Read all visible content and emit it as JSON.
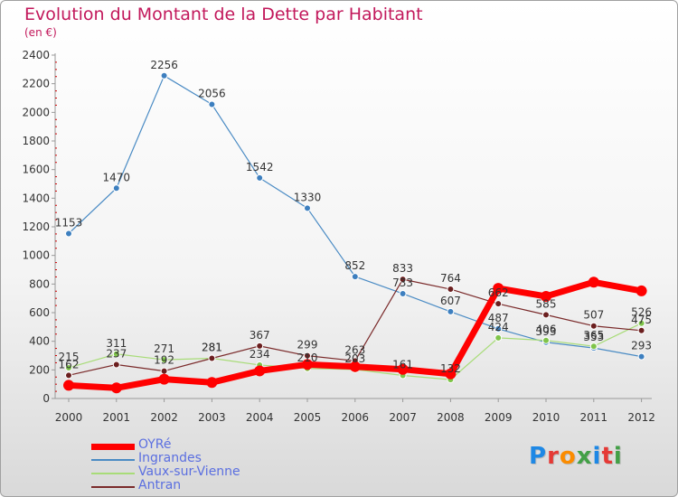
{
  "header": {
    "title": "Evolution du Montant de la Dette par Habitant",
    "subtitle": "(en €)"
  },
  "logo": {
    "text": "Proxiti",
    "letter_colors": [
      "#1e88e5",
      "#e53935",
      "#fb8c00",
      "#43a047",
      "#1e88e5",
      "#e53935",
      "#43a047"
    ]
  },
  "chart_data": {
    "type": "line",
    "x": [
      "2000",
      "2001",
      "2002",
      "2003",
      "2004",
      "2005",
      "2006",
      "2007",
      "2008",
      "2009",
      "2010",
      "2011",
      "2012"
    ],
    "ylim": [
      0,
      2400
    ],
    "yticks": [
      0,
      200,
      400,
      600,
      800,
      1000,
      1200,
      1400,
      1600,
      1800,
      2000,
      2200,
      2400
    ],
    "grid": false,
    "legend_position": "bottom-left",
    "series": [
      {
        "name": "Ingrandes",
        "color": "#4a8bc4",
        "marker": "#3d7fbf",
        "width": 1.2,
        "radius": 3.5,
        "values": [
          1153,
          1470,
          2256,
          2056,
          1542,
          1330,
          852,
          733,
          607,
          487,
          393,
          353,
          293
        ]
      },
      {
        "name": "Vaux-sur-Vienne",
        "color": "#a8dc78",
        "marker": "#7fc44a",
        "width": 1.2,
        "radius": 3.5,
        "values": [
          215,
          311,
          271,
          281,
          234,
          210,
          203,
          161,
          132,
          424,
          406,
          365,
          526
        ]
      },
      {
        "name": "Antran",
        "color": "#7a2a2a",
        "marker": "#6b1f1f",
        "width": 1.2,
        "radius": 3.5,
        "values": [
          162,
          237,
          192,
          281,
          367,
          299,
          263,
          833,
          764,
          662,
          585,
          507,
          475
        ]
      },
      {
        "name": "OYRé",
        "color": "#ff0000",
        "marker": "#ff0000",
        "width": 7,
        "radius": 6,
        "values": [
          92,
          74,
          135,
          112,
          193,
          238,
          223,
          204,
          172,
          770,
          714,
          813,
          752
        ]
      }
    ],
    "legend_order": [
      "OYRé",
      "Ingrandes",
      "Vaux-sur-Vienne",
      "Antran"
    ]
  }
}
